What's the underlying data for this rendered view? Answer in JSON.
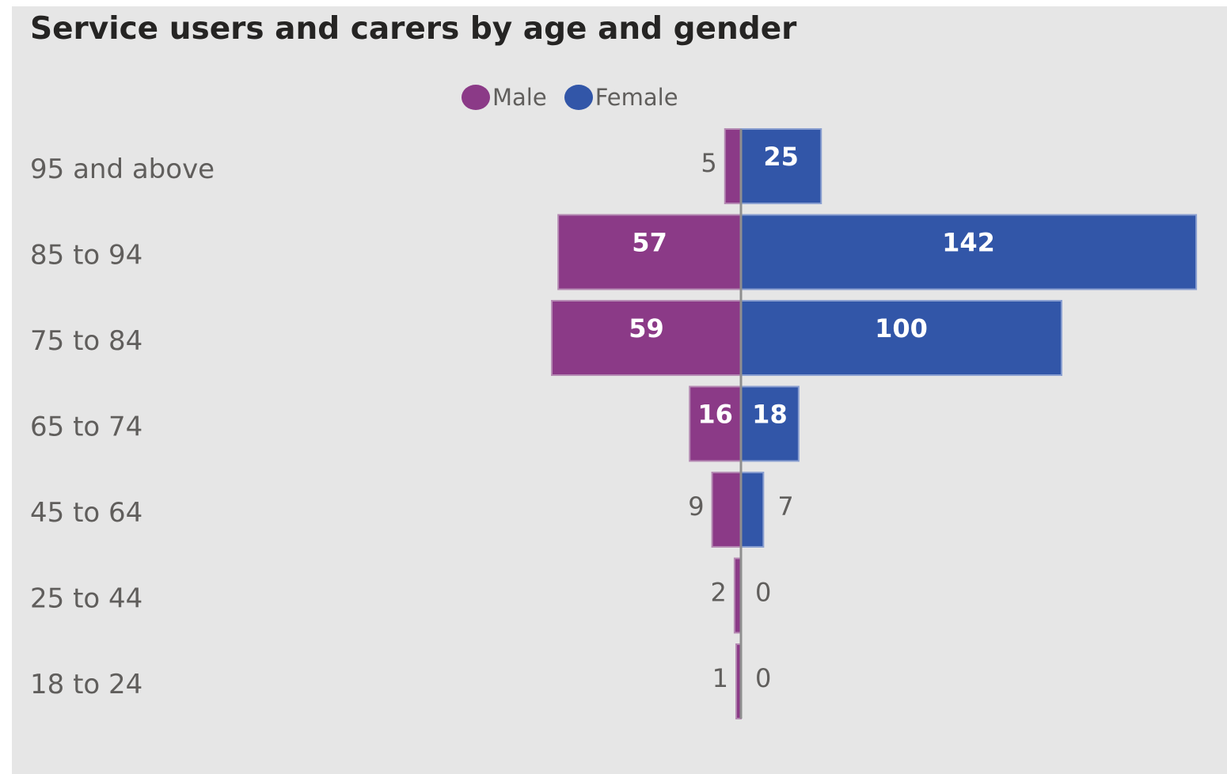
{
  "chart_data": {
    "type": "bar",
    "orientation": "horizontal",
    "layout": "diverging",
    "title": "Service users and carers by age and gender",
    "categories": [
      "95 and above",
      "85 to 94",
      "75 to 84",
      "65 to 74",
      "45 to 64",
      "25 to 44",
      "18 to 24"
    ],
    "series": [
      {
        "name": "Male",
        "color": "#8b3a87",
        "direction": "left",
        "values": [
          5,
          57,
          59,
          16,
          9,
          2,
          1
        ]
      },
      {
        "name": "Female",
        "color": "#3256a8",
        "direction": "right",
        "values": [
          25,
          142,
          100,
          18,
          7,
          0,
          0
        ]
      }
    ],
    "legend_position": "top-center",
    "grid": false,
    "data_labels": true
  }
}
